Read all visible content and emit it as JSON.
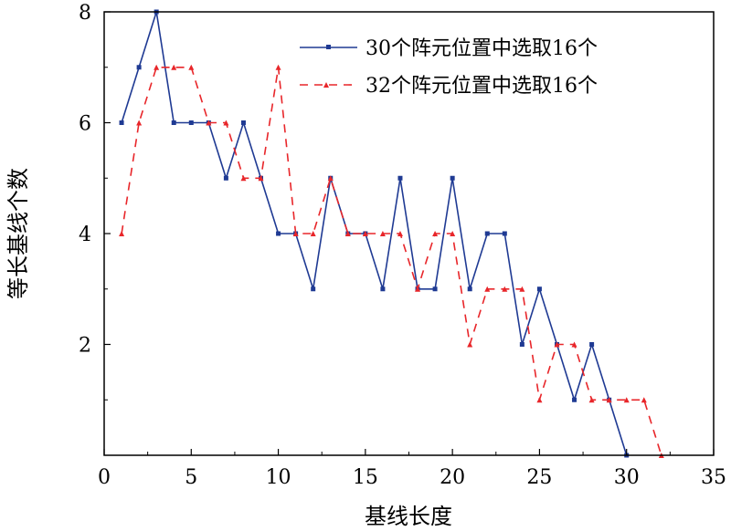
{
  "chart_data": {
    "type": "line",
    "title": "",
    "xlabel": "基线长度",
    "ylabel": "等长基线个数",
    "xlim": [
      0,
      35
    ],
    "ylim": [
      0,
      8
    ],
    "xticks": [
      0,
      5,
      10,
      15,
      20,
      25,
      30,
      35
    ],
    "yticks": [
      2,
      4,
      6,
      8
    ],
    "grid": false,
    "legend_position": "top-right",
    "series": [
      {
        "name": "30个阵元位置中选取16个",
        "color": "#1f3a93",
        "line_style": "solid",
        "marker": "square",
        "x": [
          1,
          2,
          3,
          4,
          5,
          6,
          7,
          8,
          9,
          10,
          11,
          12,
          13,
          14,
          15,
          16,
          17,
          18,
          19,
          20,
          21,
          22,
          23,
          24,
          25,
          26,
          27,
          28,
          29,
          30
        ],
        "y": [
          6,
          7,
          8,
          6,
          6,
          6,
          5,
          6,
          5,
          4,
          4,
          3,
          5,
          4,
          4,
          3,
          5,
          3,
          3,
          5,
          3,
          4,
          4,
          2,
          3,
          2,
          1,
          2,
          1,
          0
        ]
      },
      {
        "name": "32个阵元位置中选取16个",
        "color": "#e8262a",
        "line_style": "dashed",
        "marker": "triangle",
        "x": [
          1,
          2,
          3,
          4,
          5,
          6,
          7,
          8,
          9,
          10,
          11,
          12,
          13,
          14,
          15,
          16,
          17,
          18,
          19,
          20,
          21,
          22,
          23,
          24,
          25,
          26,
          27,
          28,
          29,
          30,
          31,
          32
        ],
        "y": [
          4,
          6,
          7,
          7,
          7,
          6,
          6,
          5,
          5,
          7,
          4,
          4,
          5,
          4,
          4,
          4,
          4,
          3,
          4,
          4,
          2,
          3,
          3,
          3,
          1,
          2,
          2,
          1,
          1,
          1,
          1,
          0
        ]
      }
    ]
  }
}
